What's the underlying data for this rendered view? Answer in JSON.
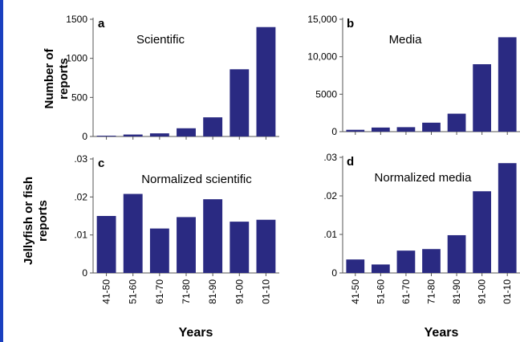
{
  "colors": {
    "bar": "#2a2a82",
    "frame_edge": "#1a3fbf"
  },
  "chart_data": [
    {
      "type": "bar",
      "letter": "a",
      "title": "Scientific",
      "categories": [
        "41-50",
        "51-60",
        "61-70",
        "71-80",
        "81-90",
        "91-00",
        "01-10"
      ],
      "values": [
        10,
        25,
        40,
        105,
        245,
        860,
        1400
      ],
      "ylim": [
        0,
        1500
      ],
      "yticks": [
        0,
        500,
        1000,
        1500
      ],
      "ytick_labels": [
        "0",
        "500",
        "1000",
        "1500"
      ],
      "show_x_ticks": false
    },
    {
      "type": "bar",
      "letter": "b",
      "title": "Media",
      "categories": [
        "41-50",
        "51-60",
        "61-70",
        "71-80",
        "81-90",
        "91-00",
        "01-10"
      ],
      "values": [
        250,
        550,
        600,
        1200,
        2400,
        9000,
        12600
      ],
      "ylim": [
        0,
        15000
      ],
      "yticks": [
        0,
        5000,
        10000,
        15000
      ],
      "ytick_labels": [
        "0",
        "5000",
        "10,000",
        "15,000"
      ],
      "show_x_ticks": false
    },
    {
      "type": "bar",
      "letter": "c",
      "title": "Normalized scientific",
      "categories": [
        "41-50",
        "51-60",
        "61-70",
        "71-80",
        "81-90",
        "91-00",
        "01-10"
      ],
      "values": [
        0.015,
        0.0208,
        0.0117,
        0.0147,
        0.0194,
        0.0135,
        0.014
      ],
      "ylim": [
        0,
        0.03
      ],
      "yticks": [
        0,
        0.01,
        0.02,
        0.03
      ],
      "ytick_labels": [
        "0",
        ".01",
        ".02",
        ".03"
      ],
      "show_x_ticks": true
    },
    {
      "type": "bar",
      "letter": "d",
      "title": "Normalized media",
      "categories": [
        "41-50",
        "51-60",
        "61-70",
        "71-80",
        "81-90",
        "91-00",
        "01-10"
      ],
      "values": [
        0.0035,
        0.0022,
        0.0058,
        0.0062,
        0.0098,
        0.0212,
        0.0285
      ],
      "ylim": [
        0,
        0.03
      ],
      "yticks": [
        0,
        0.01,
        0.02,
        0.03
      ],
      "ytick_labels": [
        "0",
        ".01",
        ".02",
        ".03"
      ],
      "show_x_ticks": true
    }
  ],
  "labels": {
    "ylabel_top": [
      "Number of",
      "reports"
    ],
    "ylabel_bottom": [
      "Jellyfish or fish",
      "reports"
    ],
    "xlabel_left": "Years",
    "xlabel_right": "Years"
  }
}
